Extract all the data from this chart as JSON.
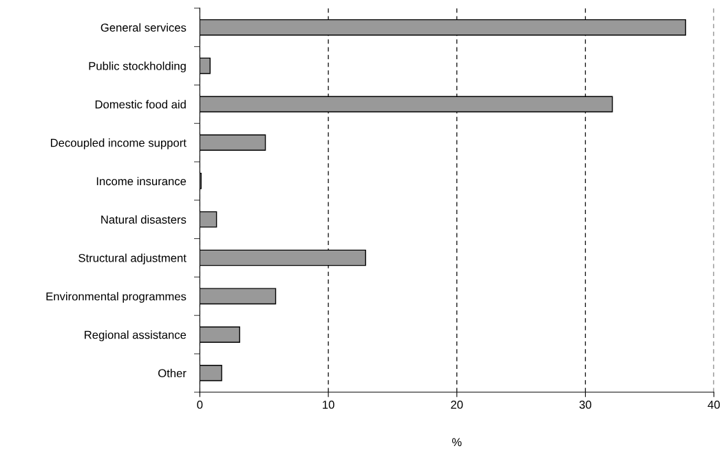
{
  "chart_data": {
    "type": "bar",
    "orientation": "horizontal",
    "xlabel": "%",
    "categories": [
      "General services",
      "Public stockholding",
      "Domestic food aid",
      "Decoupled income support",
      "Income insurance",
      "Natural disasters",
      "Structural adjustment",
      "Environmental programmes",
      "Regional assistance",
      "Other"
    ],
    "values": [
      37.8,
      0.8,
      32.1,
      5.1,
      0.1,
      1.3,
      12.9,
      5.9,
      3.1,
      1.7
    ],
    "color": "#999999",
    "xlim": [
      0,
      40
    ],
    "xticks": [
      0,
      10,
      20,
      30,
      40
    ],
    "grid": "x"
  }
}
